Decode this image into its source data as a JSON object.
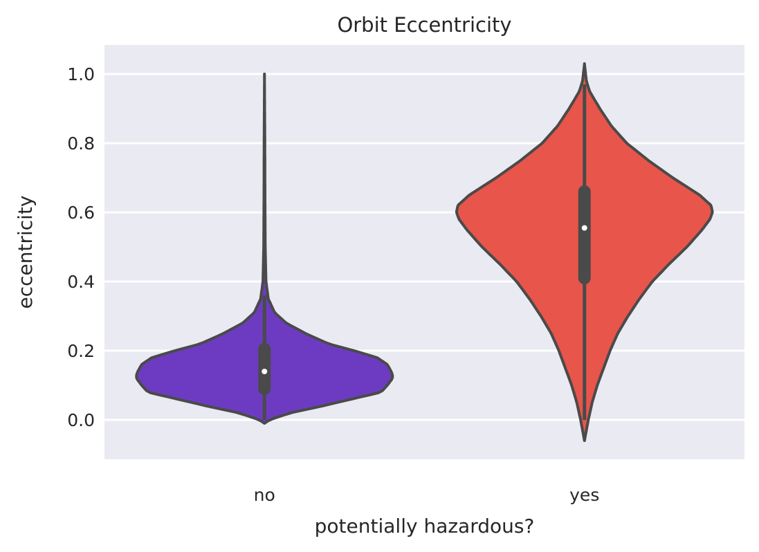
{
  "chart_data": {
    "type": "violin",
    "title": "Orbit Eccentricity",
    "xlabel": "potentially hazardous?",
    "ylabel": "eccentricity",
    "categories": [
      "no",
      "yes"
    ],
    "ylim": [
      -0.11,
      1.08
    ],
    "yticks": [
      0.0,
      0.2,
      0.4,
      0.6,
      0.8,
      1.0
    ],
    "ytick_labels": [
      "0.0",
      "0.2",
      "0.4",
      "0.6",
      "0.8",
      "1.0"
    ],
    "grid": true,
    "background": "#eaeaf2",
    "series": [
      {
        "category": "no",
        "color": "#6d3bc2",
        "range": [
          -0.01,
          1.0
        ],
        "quartiles": [
          0.09,
          0.14,
          0.205
        ],
        "median": 0.14,
        "whisker": [
          0.0,
          0.36
        ],
        "density_profile": [
          [
            -0.01,
            0.0
          ],
          [
            0.0,
            0.04
          ],
          [
            0.02,
            0.2
          ],
          [
            0.04,
            0.45
          ],
          [
            0.06,
            0.68
          ],
          [
            0.08,
            0.91
          ],
          [
            0.1,
            0.96
          ],
          [
            0.12,
            1.0
          ],
          [
            0.13,
            1.0
          ],
          [
            0.14,
            0.99
          ],
          [
            0.16,
            0.96
          ],
          [
            0.18,
            0.88
          ],
          [
            0.2,
            0.7
          ],
          [
            0.22,
            0.5
          ],
          [
            0.25,
            0.32
          ],
          [
            0.28,
            0.17
          ],
          [
            0.31,
            0.08
          ],
          [
            0.35,
            0.03
          ],
          [
            0.4,
            0.012
          ],
          [
            0.5,
            0.006
          ],
          [
            0.65,
            0.004
          ],
          [
            0.8,
            0.003
          ],
          [
            1.0,
            0.0
          ]
        ]
      },
      {
        "category": "yes",
        "color": "#e8554b",
        "range": [
          -0.06,
          1.03
        ],
        "quartiles": [
          0.41,
          0.555,
          0.66
        ],
        "median": 0.555,
        "whisker": [
          0.0,
          0.97
        ],
        "density_profile": [
          [
            -0.06,
            0.0
          ],
          [
            0.0,
            0.03
          ],
          [
            0.05,
            0.06
          ],
          [
            0.1,
            0.1
          ],
          [
            0.15,
            0.15
          ],
          [
            0.2,
            0.2
          ],
          [
            0.25,
            0.26
          ],
          [
            0.3,
            0.34
          ],
          [
            0.35,
            0.43
          ],
          [
            0.4,
            0.53
          ],
          [
            0.45,
            0.66
          ],
          [
            0.5,
            0.8
          ],
          [
            0.55,
            0.92
          ],
          [
            0.58,
            0.98
          ],
          [
            0.6,
            1.0
          ],
          [
            0.62,
            0.99
          ],
          [
            0.65,
            0.9
          ],
          [
            0.7,
            0.69
          ],
          [
            0.75,
            0.5
          ],
          [
            0.8,
            0.33
          ],
          [
            0.85,
            0.21
          ],
          [
            0.9,
            0.12
          ],
          [
            0.95,
            0.04
          ],
          [
            0.98,
            0.015
          ],
          [
            1.03,
            0.0
          ]
        ]
      }
    ]
  }
}
